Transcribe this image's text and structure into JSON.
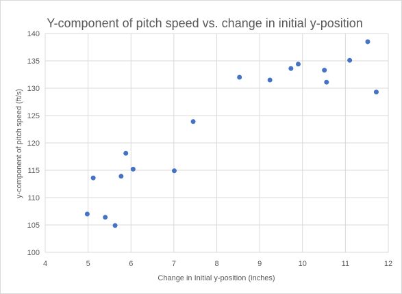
{
  "chart_data": {
    "type": "scatter",
    "title": "Y-component of pitch speed vs. change in initial y-position",
    "xlabel": "Change in Initial y-position (inches)",
    "ylabel": "y-component of pitch speed (ft/s)",
    "xlim": [
      4,
      12
    ],
    "ylim": [
      100,
      140
    ],
    "xticks": [
      "4",
      "5",
      "6",
      "7",
      "8",
      "9",
      "10",
      "11",
      "12"
    ],
    "yticks": [
      "100",
      "105",
      "110",
      "115",
      "120",
      "125",
      "130",
      "135",
      "140"
    ],
    "grid": "horizontal and vertical major gridlines",
    "legend": "none",
    "marker_color": "#4472c4",
    "series": [
      {
        "points": [
          {
            "x": 4.98,
            "y": 107.0
          },
          {
            "x": 5.12,
            "y": 113.6
          },
          {
            "x": 5.4,
            "y": 106.4
          },
          {
            "x": 5.63,
            "y": 104.9
          },
          {
            "x": 5.77,
            "y": 113.9
          },
          {
            "x": 5.88,
            "y": 118.1
          },
          {
            "x": 6.05,
            "y": 115.2
          },
          {
            "x": 7.01,
            "y": 114.9
          },
          {
            "x": 7.45,
            "y": 123.9
          },
          {
            "x": 8.53,
            "y": 132.0
          },
          {
            "x": 9.24,
            "y": 131.5
          },
          {
            "x": 9.73,
            "y": 133.6
          },
          {
            "x": 9.9,
            "y": 134.4
          },
          {
            "x": 10.51,
            "y": 133.3
          },
          {
            "x": 10.56,
            "y": 131.1
          },
          {
            "x": 11.1,
            "y": 135.1
          },
          {
            "x": 11.52,
            "y": 138.5
          },
          {
            "x": 11.72,
            "y": 129.3
          }
        ]
      }
    ]
  }
}
